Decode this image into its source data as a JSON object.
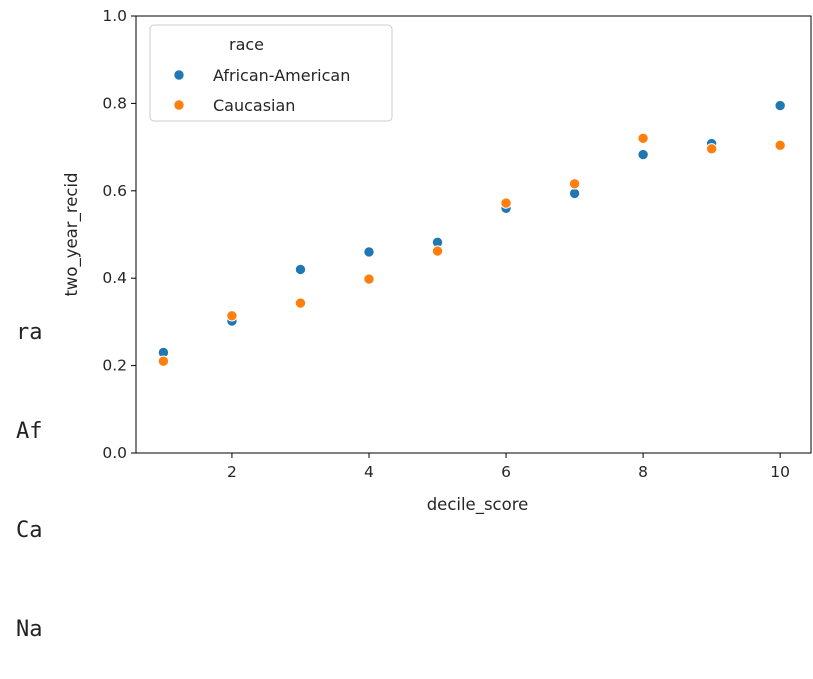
{
  "left_fragment": {
    "lines": [
      "ra",
      "Af",
      "Ca",
      "Na"
    ]
  },
  "chart_data": {
    "type": "scatter",
    "title": "",
    "xlabel": "decile_score",
    "ylabel": "two_year_recid",
    "xlim": [
      0.6,
      10.45
    ],
    "ylim": [
      0.0,
      1.0
    ],
    "xticks": [
      2,
      4,
      6,
      8,
      10
    ],
    "yticks": [
      0.0,
      0.2,
      0.4,
      0.6,
      0.8,
      1.0
    ],
    "ytick_labels": [
      "0.0",
      "0.2",
      "0.4",
      "0.6",
      "0.8",
      "1.0"
    ],
    "grid": false,
    "legend": {
      "title": "race",
      "placement": "top-left"
    },
    "series": [
      {
        "name": "African-American",
        "color": "#1f77b4",
        "x": [
          1,
          2,
          3,
          4,
          5,
          6,
          7,
          8,
          9,
          10
        ],
        "y": [
          0.23,
          0.302,
          0.42,
          0.46,
          0.482,
          0.56,
          0.594,
          0.683,
          0.708,
          0.795
        ]
      },
      {
        "name": "Caucasian",
        "color": "#ff7f0e",
        "x": [
          1,
          2,
          3,
          4,
          5,
          6,
          7,
          8,
          9,
          10
        ],
        "y": [
          0.21,
          0.314,
          0.343,
          0.398,
          0.462,
          0.572,
          0.616,
          0.72,
          0.696,
          0.704
        ]
      }
    ]
  }
}
